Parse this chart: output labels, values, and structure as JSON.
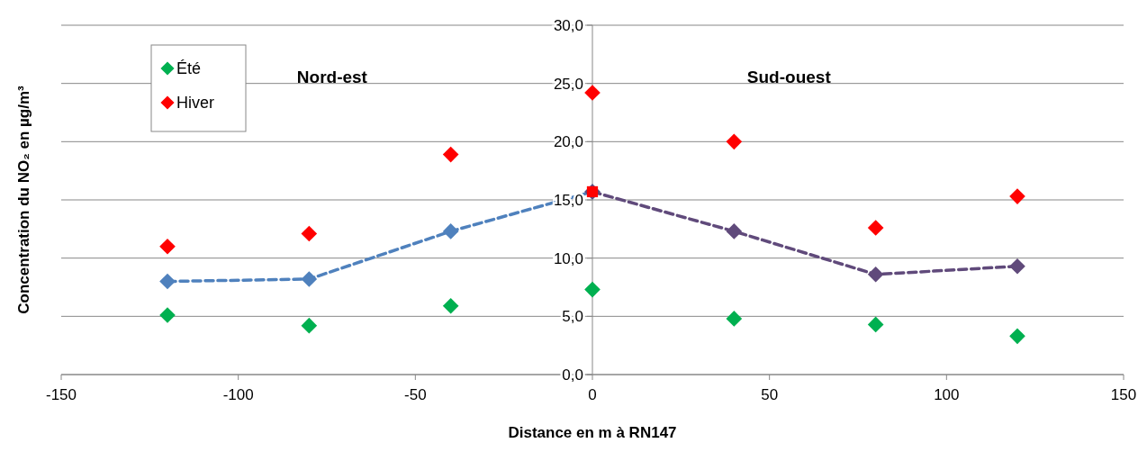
{
  "chart_data": {
    "type": "scatter",
    "xlabel": "Distance en m à RN147",
    "ylabel": "Concentration du NO₂ en µg/m³",
    "xlim": [
      -150,
      150
    ],
    "xticks": [
      -150,
      -100,
      -50,
      0,
      50,
      100,
      150
    ],
    "ylim": [
      0,
      30
    ],
    "yticks": [
      {
        "value": 0,
        "label": "0,0"
      },
      {
        "value": 5,
        "label": "5,0"
      },
      {
        "value": 10,
        "label": "10,0"
      },
      {
        "value": 15,
        "label": "15,0"
      },
      {
        "value": 20,
        "label": "20,0"
      },
      {
        "value": 25,
        "label": "25,0"
      },
      {
        "value": 30,
        "label": "30,0"
      }
    ],
    "grid": "y",
    "legend": "top left",
    "marker": "diamond",
    "annotations": [
      "Nord-est",
      "Sud-ouest"
    ],
    "series": [
      {
        "type": "line",
        "line_style": "dashed",
        "color": "#4f81bd",
        "x": [
          -120,
          -80,
          -40,
          0
        ],
        "values": [
          8.0,
          8.2,
          12.3,
          15.7
        ]
      },
      {
        "type": "line",
        "line_style": "dashed",
        "color": "#604a7b",
        "x": [
          0,
          40,
          80,
          120
        ],
        "values": [
          15.7,
          12.3,
          8.6,
          9.3
        ]
      },
      {
        "name": "Été",
        "color": "#00b050",
        "x": [
          -120,
          -80,
          -40,
          0,
          40,
          80,
          120
        ],
        "values": [
          5.1,
          4.2,
          5.9,
          7.3,
          4.8,
          4.3,
          3.3
        ]
      },
      {
        "name": "Hiver",
        "color": "#ff0000",
        "x": [
          -120,
          -80,
          -40,
          0,
          40,
          80,
          120
        ],
        "values": [
          11.0,
          12.1,
          18.9,
          24.2,
          20.0,
          12.6,
          15.3
        ]
      },
      {
        "color": "#ff0000",
        "marker": "square",
        "x": [
          0
        ],
        "values": [
          15.7
        ]
      }
    ]
  }
}
